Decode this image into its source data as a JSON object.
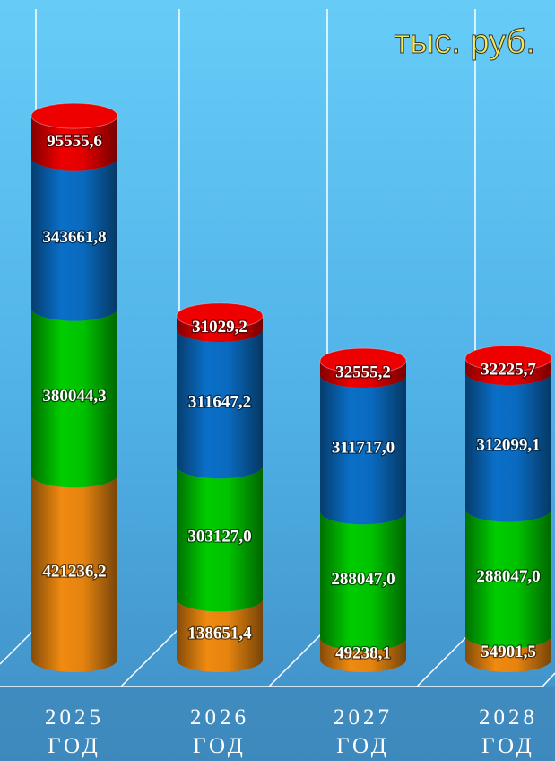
{
  "chart_data": {
    "type": "stacked-cylinder",
    "unit": "тыс. руб.",
    "categories": [
      "2025\nГОД",
      "2026\nГОД",
      "2027\nГОД",
      "2028\nГОД"
    ],
    "ylim": [
      0,
      1300000
    ],
    "series": [
      {
        "color": "#f08a10",
        "values": [
          421236.2,
          138651.4,
          49238.1,
          54901.5
        ],
        "value_labels": [
          "421236,2",
          "138651,4",
          "49238,1",
          "54901,5"
        ]
      },
      {
        "color": "#00cc00",
        "values": [
          380044.3,
          303127.0,
          288047.0,
          288047.0
        ],
        "value_labels": [
          "380044,3",
          "303127,0",
          "288047,0",
          "288047,0"
        ]
      },
      {
        "color": "#0a6fc8",
        "values": [
          343661.8,
          311647.2,
          311717.0,
          312099.1
        ],
        "value_labels": [
          "343661,8",
          "311647,2",
          "311717,0",
          "312099,1"
        ]
      },
      {
        "color": "#ee0000",
        "values": [
          95555.6,
          31029.2,
          32555.2,
          32225.7
        ],
        "value_labels": [
          "95555,6",
          "31029,2",
          "32555,2",
          "32225,7"
        ]
      }
    ]
  }
}
